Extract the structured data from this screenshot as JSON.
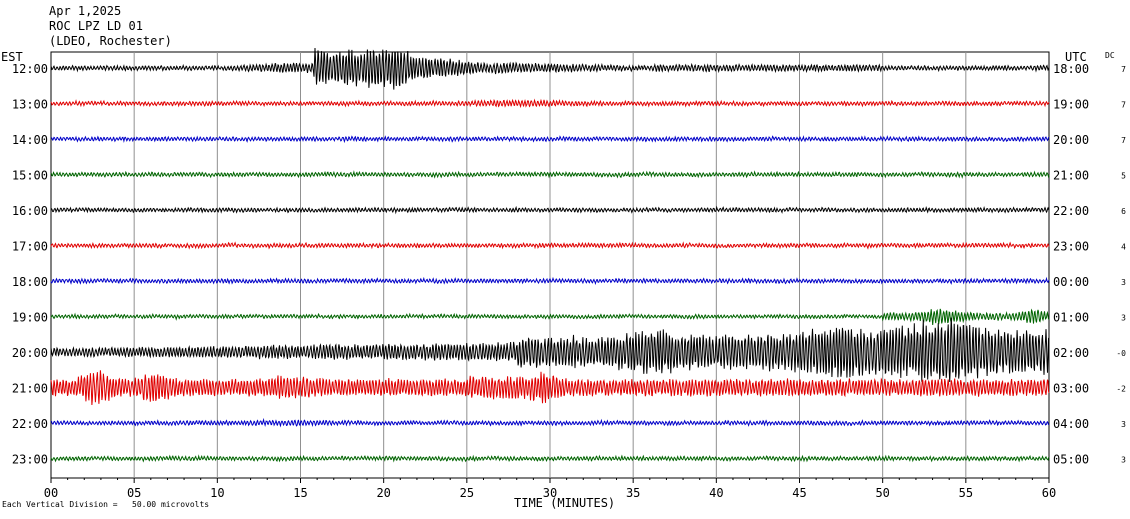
{
  "header": {
    "date": "Apr 1,2025",
    "station": "ROC LPZ LD 01",
    "network": "(LDEO, Rochester)"
  },
  "left_zone_label": "EST",
  "right_zone_label": "UTC",
  "dc_label": "DC",
  "footer_note": "Each Vertical Division =   50.00 microvolts",
  "chart_data": {
    "type": "line",
    "xlabel": "TIME (MINUTES)",
    "xlim": [
      0,
      60
    ],
    "x_ticks": [
      "00",
      "05",
      "10",
      "15",
      "20",
      "25",
      "30",
      "35",
      "40",
      "45",
      "50",
      "55",
      "60"
    ],
    "grid": true,
    "colors": [
      "#000000",
      "#e00000",
      "#0000c8",
      "#006400"
    ],
    "rows": [
      {
        "local": "12:00",
        "utc": "18:00",
        "dc": "7"
      },
      {
        "local": "13:00",
        "utc": "19:00",
        "dc": "7"
      },
      {
        "local": "14:00",
        "utc": "20:00",
        "dc": "7"
      },
      {
        "local": "15:00",
        "utc": "21:00",
        "dc": "5"
      },
      {
        "local": "16:00",
        "utc": "22:00",
        "dc": "6"
      },
      {
        "local": "17:00",
        "utc": "23:00",
        "dc": "4"
      },
      {
        "local": "18:00",
        "utc": "00:00",
        "dc": "3"
      },
      {
        "local": "19:00",
        "utc": "01:00",
        "dc": "3"
      },
      {
        "local": "20:00",
        "utc": "02:00",
        "dc": "-0"
      },
      {
        "local": "21:00",
        "utc": "03:00",
        "dc": "-2"
      },
      {
        "local": "22:00",
        "utc": "04:00",
        "dc": "3"
      },
      {
        "local": "23:00",
        "utc": "05:00",
        "dc": "3"
      }
    ]
  }
}
